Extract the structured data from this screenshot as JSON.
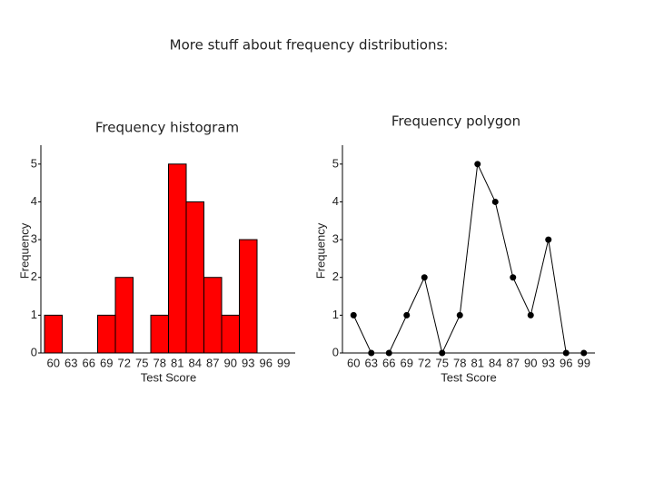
{
  "title": "More stuff about frequency distributions:",
  "chart_data": [
    {
      "type": "bar",
      "title": "Frequency histogram",
      "xlabel": "Test Score",
      "ylabel": "Frequency",
      "categories": [
        "60",
        "63",
        "66",
        "69",
        "72",
        "75",
        "78",
        "81",
        "84",
        "87",
        "90",
        "93",
        "96",
        "99"
      ],
      "values": [
        1,
        0,
        0,
        1,
        2,
        0,
        1,
        5,
        4,
        2,
        1,
        3,
        0,
        0
      ],
      "color": "#ff0000",
      "ylim": [
        0,
        5.5
      ],
      "yticks": [
        0,
        1,
        2,
        3,
        4,
        5
      ]
    },
    {
      "type": "line",
      "title": "Frequency polygon",
      "xlabel": "Test Score",
      "ylabel": "Frequency",
      "categories": [
        "60",
        "63",
        "66",
        "69",
        "72",
        "75",
        "78",
        "81",
        "84",
        "87",
        "90",
        "93",
        "96",
        "99"
      ],
      "values": [
        1,
        0,
        0,
        1,
        2,
        0,
        1,
        5,
        4,
        2,
        1,
        3,
        0,
        0
      ],
      "color": "#000000",
      "ylim": [
        0,
        5.5
      ],
      "yticks": [
        0,
        1,
        2,
        3,
        4,
        5
      ]
    }
  ]
}
